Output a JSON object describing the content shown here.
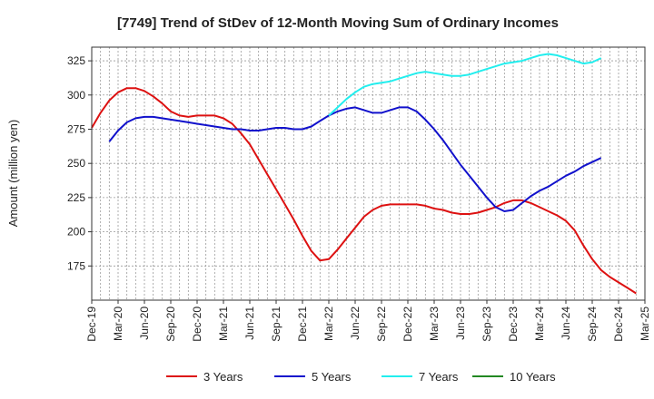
{
  "chart_data": {
    "type": "line",
    "title": "[7749]  Trend of StDev of 12-Month Moving Sum of Ordinary Incomes",
    "xlabel": "",
    "ylabel": "Amount (million yen)",
    "ylim": [
      150,
      335
    ],
    "yticks": [
      175,
      200,
      225,
      250,
      275,
      300,
      325
    ],
    "x_tick_labels": [
      "Dec-19",
      "Mar-20",
      "Jun-20",
      "Sep-20",
      "Dec-20",
      "Mar-21",
      "Jun-21",
      "Sep-21",
      "Dec-21",
      "Mar-22",
      "Jun-22",
      "Sep-22",
      "Dec-22",
      "Mar-23",
      "Jun-23",
      "Sep-23",
      "Dec-23",
      "Mar-24",
      "Jun-24",
      "Sep-24",
      "Dec-24",
      "Mar-25"
    ],
    "x_start": "Dec-19",
    "x_months": 63,
    "grid": true,
    "legend_position": "bottom",
    "series": [
      {
        "name": "3 Years",
        "color": "#dd1111",
        "start_month": 0,
        "values": [
          276,
          287,
          296,
          302,
          305,
          305,
          303,
          299,
          294,
          288,
          285,
          284,
          285,
          285,
          285,
          283,
          279,
          272,
          264,
          253,
          242,
          231,
          220,
          209,
          197,
          186,
          179,
          180,
          187,
          195,
          203,
          211,
          216,
          219,
          220,
          220,
          220,
          220,
          219,
          217,
          216,
          214,
          213,
          213,
          214,
          216,
          218,
          221,
          223,
          223,
          221,
          218,
          215,
          212,
          208,
          201,
          190,
          180,
          172,
          167,
          163,
          159,
          155
        ]
      },
      {
        "name": "5 Years",
        "color": "#1111cc",
        "start_month": 2,
        "values": [
          266,
          274,
          280,
          283,
          284,
          284,
          283,
          282,
          281,
          280,
          279,
          278,
          277,
          276,
          275,
          275,
          274,
          274,
          275,
          276,
          276,
          275,
          275,
          277,
          281,
          285,
          288,
          290,
          291,
          289,
          287,
          287,
          289,
          291,
          291,
          288,
          282,
          275,
          267,
          258,
          249,
          241,
          233,
          225,
          218,
          215,
          216,
          221,
          226,
          230,
          233,
          237,
          241,
          244,
          248,
          251,
          254
        ]
      },
      {
        "name": "7 Years",
        "color": "#22eeee",
        "start_month": 27,
        "values": [
          285,
          291,
          297,
          302,
          306,
          308,
          309,
          310,
          312,
          314,
          316,
          317,
          316,
          315,
          314,
          314,
          315,
          317,
          319,
          321,
          323,
          324,
          325,
          327,
          329,
          330,
          329,
          327,
          325,
          323,
          324,
          327
        ]
      },
      {
        "name": "10 Years",
        "color": "#228822",
        "start_month": 0,
        "values": []
      }
    ]
  }
}
